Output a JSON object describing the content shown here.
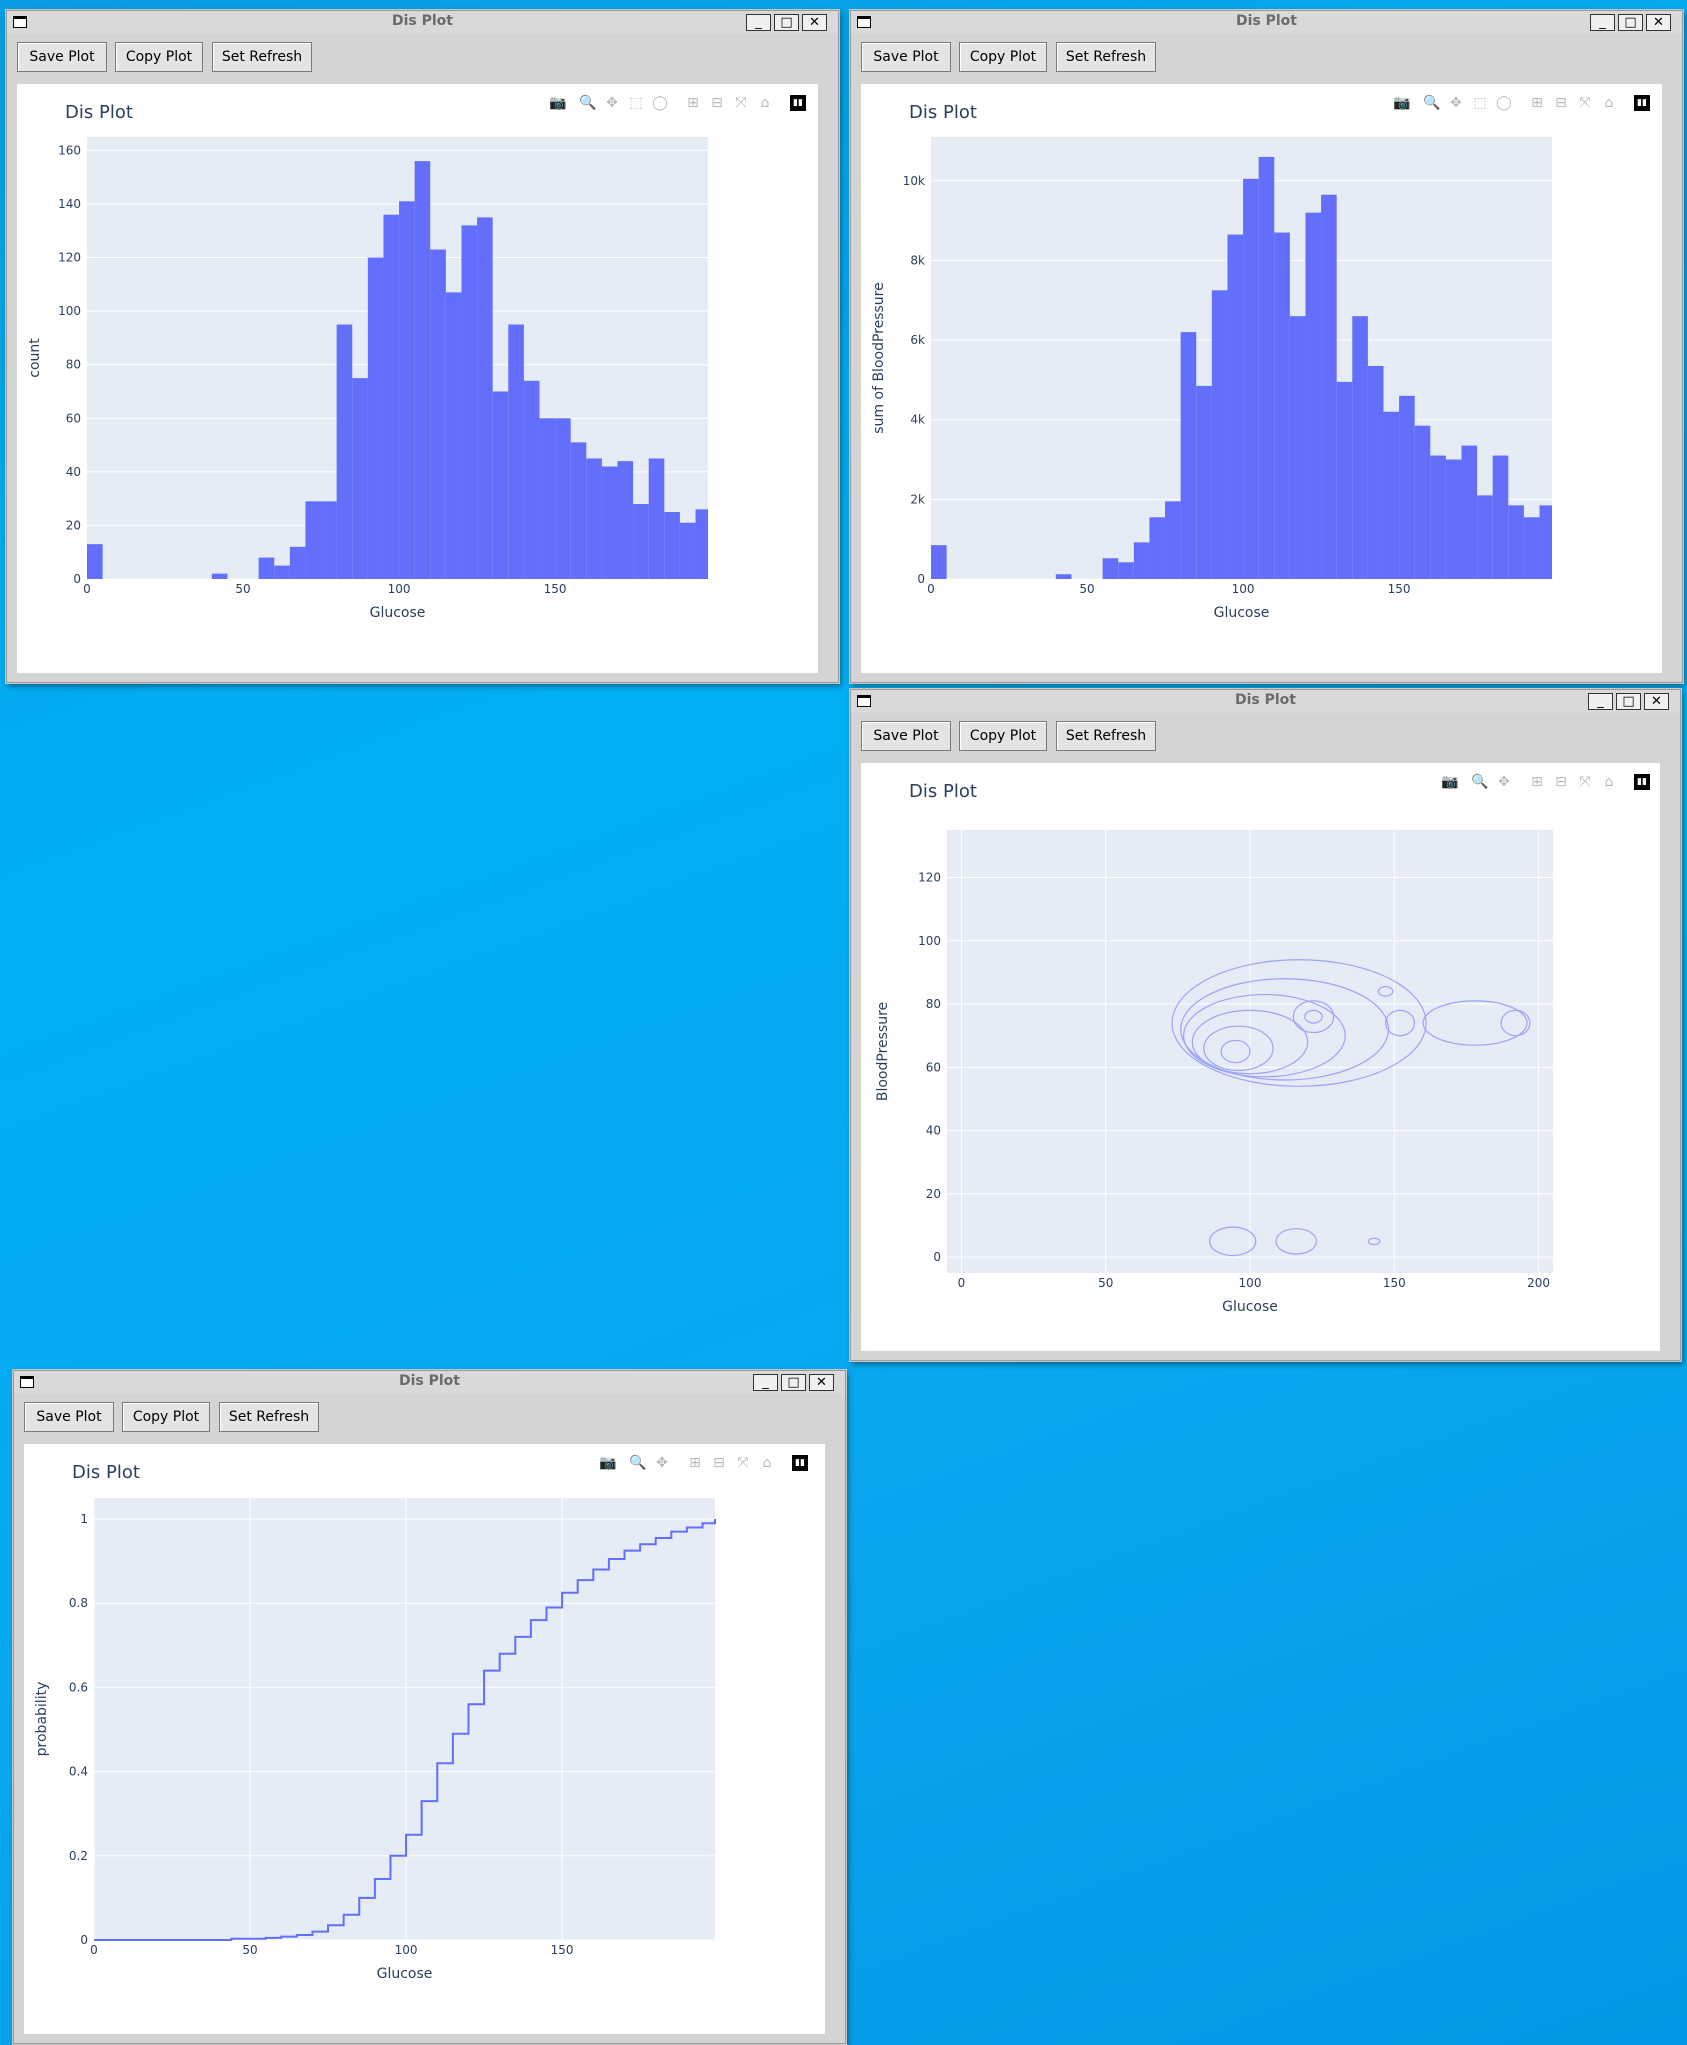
{
  "windows": [
    {
      "title": "Dis Plot",
      "buttons": [
        "Save Plot",
        "Copy Plot",
        "Set Refresh"
      ],
      "plot_title": "Dis Plot",
      "modebar": [
        "camera-icon",
        "zoom-icon",
        "pan-icon",
        "box-select-icon",
        "lasso-icon",
        "zoom-in-icon",
        "zoom-out-icon",
        "autoscale-icon",
        "reset-axes-icon",
        "plotly-logo-icon"
      ],
      "chart_data": {
        "type": "bar",
        "title": "Dis Plot",
        "xlabel": "Glucose",
        "ylabel": "count",
        "bin_width": 5,
        "bin_starts": [
          0,
          5,
          10,
          15,
          20,
          25,
          30,
          35,
          40,
          45,
          50,
          55,
          60,
          65,
          70,
          75,
          80,
          85,
          90,
          95,
          100,
          105,
          110,
          115,
          120,
          125,
          130,
          135,
          140,
          145,
          150,
          155,
          160,
          165,
          170,
          175,
          180,
          185,
          190,
          195
        ],
        "values": [
          13,
          0,
          0,
          0,
          0,
          0,
          0,
          0,
          2,
          0,
          0,
          8,
          5,
          12,
          29,
          29,
          95,
          75,
          120,
          136,
          141,
          156,
          123,
          107,
          132,
          135,
          70,
          95,
          74,
          60,
          60,
          51,
          45,
          42,
          44,
          28,
          45,
          25,
          21,
          26
        ],
        "xlim": [
          0,
          199
        ],
        "ylim": [
          0,
          165
        ],
        "x_ticks": [
          0,
          50,
          100,
          150
        ],
        "y_ticks": [
          0,
          20,
          40,
          60,
          80,
          100,
          120,
          140,
          160
        ],
        "color": "#636efa",
        "bg": "#e5ecf6"
      }
    },
    {
      "title": "Dis Plot",
      "buttons": [
        "Save Plot",
        "Copy Plot",
        "Set Refresh"
      ],
      "plot_title": "Dis Plot",
      "modebar": [
        "camera-icon",
        "zoom-icon",
        "pan-icon",
        "box-select-icon",
        "lasso-icon",
        "zoom-in-icon",
        "zoom-out-icon",
        "autoscale-icon",
        "reset-axes-icon",
        "plotly-logo-icon"
      ],
      "chart_data": {
        "type": "bar",
        "title": "Dis Plot",
        "xlabel": "Glucose",
        "ylabel": "sum of BloodPressure",
        "bin_width": 5,
        "bin_starts": [
          0,
          5,
          10,
          15,
          20,
          25,
          30,
          35,
          40,
          45,
          50,
          55,
          60,
          65,
          70,
          75,
          80,
          85,
          90,
          95,
          100,
          105,
          110,
          115,
          120,
          125,
          130,
          135,
          140,
          145,
          150,
          155,
          160,
          165,
          170,
          175,
          180,
          185,
          190,
          195
        ],
        "values": [
          850,
          0,
          0,
          0,
          0,
          0,
          0,
          0,
          120,
          0,
          0,
          520,
          420,
          920,
          1550,
          1950,
          6200,
          4850,
          7250,
          8650,
          10050,
          10600,
          8700,
          6600,
          9200,
          9650,
          4950,
          6600,
          5350,
          4200,
          4600,
          3850,
          3100,
          3000,
          3350,
          2100,
          3100,
          1850,
          1550,
          1850
        ],
        "xlim": [
          0,
          199
        ],
        "ylim": [
          0,
          11100
        ],
        "x_ticks": [
          0,
          50,
          100,
          150
        ],
        "y_ticks": [
          0,
          2000,
          4000,
          6000,
          8000,
          10000
        ],
        "y_tick_labels": [
          "0",
          "2k",
          "4k",
          "6k",
          "8k",
          "10k"
        ],
        "color": "#636efa",
        "bg": "#e5ecf6"
      }
    },
    {
      "title": "Dis Plot",
      "buttons": [
        "Save Plot",
        "Copy Plot",
        "Set Refresh"
      ],
      "plot_title": "Dis Plot",
      "modebar": [
        "camera-icon",
        "zoom-icon",
        "pan-icon",
        "zoom-in-icon",
        "zoom-out-icon",
        "autoscale-icon",
        "reset-axes-icon",
        "plotly-logo-icon"
      ],
      "chart_data": {
        "type": "contour",
        "title": "Dis Plot",
        "xlabel": "Glucose",
        "ylabel": "BloodPressure",
        "xlim": [
          -5,
          205
        ],
        "ylim": [
          -5,
          135
        ],
        "x_ticks": [
          0,
          50,
          100,
          150,
          200
        ],
        "y_ticks": [
          0,
          20,
          40,
          60,
          80,
          100,
          120
        ],
        "grid": true,
        "color": "#9ca2f7",
        "contours": [
          {
            "kind": "ellipse",
            "cx": 117,
            "cy": 74,
            "rx": 44,
            "ry": 20
          },
          {
            "kind": "ellipse",
            "cx": 112,
            "cy": 72,
            "rx": 36,
            "ry": 16
          },
          {
            "kind": "ellipse",
            "cx": 105,
            "cy": 70,
            "rx": 28,
            "ry": 13
          },
          {
            "kind": "ellipse",
            "cx": 100,
            "cy": 68,
            "rx": 20,
            "ry": 10
          },
          {
            "kind": "ellipse",
            "cx": 96,
            "cy": 66,
            "rx": 12,
            "ry": 7
          },
          {
            "kind": "ellipse",
            "cx": 95,
            "cy": 65,
            "rx": 5,
            "ry": 3.5
          },
          {
            "kind": "ellipse",
            "cx": 122,
            "cy": 76,
            "rx": 7,
            "ry": 5
          },
          {
            "kind": "ellipse",
            "cx": 122,
            "cy": 76,
            "rx": 3,
            "ry": 2
          },
          {
            "kind": "ellipse",
            "cx": 178,
            "cy": 74,
            "rx": 18,
            "ry": 7
          },
          {
            "kind": "ellipse",
            "cx": 192,
            "cy": 74,
            "rx": 5,
            "ry": 4
          },
          {
            "kind": "ellipse",
            "cx": 152,
            "cy": 74,
            "rx": 5,
            "ry": 4
          },
          {
            "kind": "ellipse",
            "cx": 147,
            "cy": 84,
            "rx": 2.5,
            "ry": 1.5
          },
          {
            "kind": "ellipse",
            "cx": 94,
            "cy": 5,
            "rx": 8,
            "ry": 4.5
          },
          {
            "kind": "ellipse",
            "cx": 116,
            "cy": 5,
            "rx": 7,
            "ry": 4
          },
          {
            "kind": "ellipse",
            "cx": 143,
            "cy": 5,
            "rx": 2,
            "ry": 1
          }
        ],
        "bg": "#e5ecf6"
      }
    },
    {
      "title": "Dis Plot",
      "buttons": [
        "Save Plot",
        "Copy Plot",
        "Set Refresh"
      ],
      "plot_title": "Dis Plot",
      "modebar": [
        "camera-icon",
        "zoom-icon",
        "pan-icon",
        "zoom-in-icon",
        "zoom-out-icon",
        "autoscale-icon",
        "reset-axes-icon",
        "plotly-logo-icon"
      ],
      "chart_data": {
        "type": "line",
        "title": "Dis Plot",
        "xlabel": "Glucose",
        "ylabel": "probability",
        "x": [
          0,
          40,
          44,
          55,
          60,
          65,
          70,
          75,
          80,
          85,
          90,
          95,
          100,
          105,
          110,
          115,
          120,
          125,
          130,
          135,
          140,
          145,
          150,
          155,
          160,
          165,
          170,
          175,
          180,
          185,
          190,
          195,
          199
        ],
        "y": [
          0,
          0,
          0.003,
          0.005,
          0.008,
          0.012,
          0.02,
          0.035,
          0.06,
          0.1,
          0.145,
          0.2,
          0.25,
          0.33,
          0.42,
          0.49,
          0.56,
          0.64,
          0.68,
          0.72,
          0.76,
          0.79,
          0.825,
          0.855,
          0.88,
          0.905,
          0.925,
          0.94,
          0.955,
          0.97,
          0.98,
          0.99,
          1.0
        ],
        "xlim": [
          0,
          199
        ],
        "ylim": [
          0,
          1.05
        ],
        "x_ticks": [
          0,
          50,
          100,
          150
        ],
        "y_ticks": [
          0,
          0.2,
          0.4,
          0.6,
          0.8,
          1
        ],
        "y_tick_labels": [
          "0",
          "0.2",
          "0.4",
          "0.6",
          "0.8",
          "1"
        ],
        "color": "#636efa",
        "bg": "#e5ecf6"
      }
    }
  ]
}
